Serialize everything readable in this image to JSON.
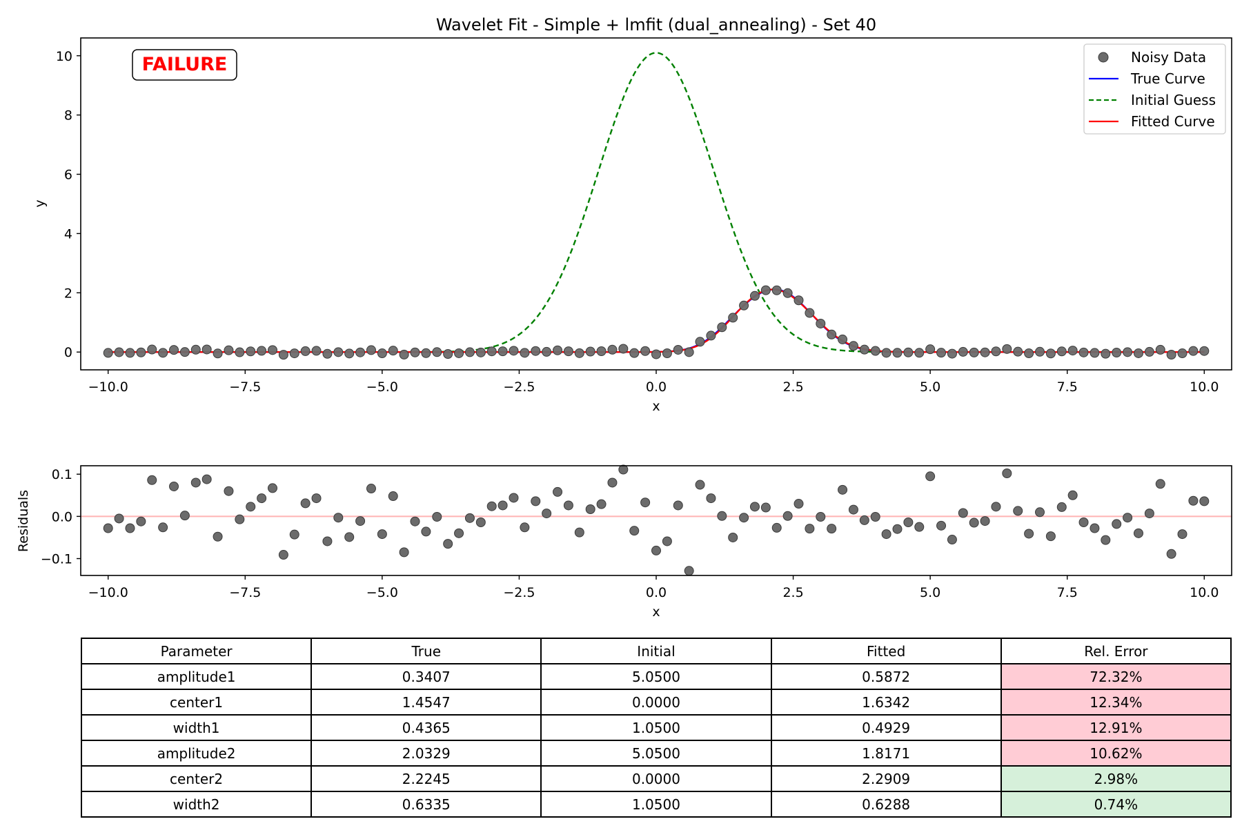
{
  "chart_data": [
    {
      "type": "line",
      "title": "Wavelet Fit - Simple + lmfit (dual_annealing) - Set 40",
      "xlabel": "x",
      "ylabel": "y",
      "xlim": [
        -10.5,
        10.5
      ],
      "ylim": [
        -0.6,
        10.6
      ],
      "xticks": [
        -10,
        -7.5,
        -5,
        -2.5,
        0,
        2.5,
        5,
        7.5,
        10
      ],
      "xtick_labels": [
        "−10.0",
        "−7.5",
        "−5.0",
        "−2.5",
        "0.0",
        "2.5",
        "5.0",
        "7.5",
        "10.0"
      ],
      "yticks": [
        0,
        2,
        4,
        6,
        8,
        10
      ],
      "ytick_labels": [
        "0",
        "2",
        "4",
        "6",
        "8",
        "10"
      ],
      "legend_position": "top-right",
      "status_badge": "FAILURE",
      "series": [
        {
          "name": "Noisy Data",
          "kind": "scatter",
          "color": "#666666",
          "n_points": 101,
          "x_range": [
            -10,
            10
          ],
          "note": "y values equal True Curve plus residuals shown below"
        },
        {
          "name": "True Curve",
          "kind": "line",
          "color": "#0000ff",
          "model": "two gaussians",
          "amplitude1": 0.3407,
          "center1": 1.4547,
          "width1": 0.4365,
          "amplitude2": 2.0329,
          "center2": 2.2245,
          "width2": 0.6335
        },
        {
          "name": "Initial Guess",
          "kind": "line",
          "style": "dashed",
          "color": "#008000",
          "amplitude1": 5.05,
          "center1": 0.0,
          "width1": 1.05,
          "amplitude2": 5.05,
          "center2": 0.0,
          "width2": 1.05
        },
        {
          "name": "Fitted Curve",
          "kind": "line",
          "color": "#ff0000",
          "amplitude1": 0.5872,
          "center1": 1.6342,
          "width1": 0.4929,
          "amplitude2": 1.8171,
          "center2": 2.2909,
          "width2": 0.6288
        }
      ]
    },
    {
      "type": "scatter",
      "title": "",
      "xlabel": "x",
      "ylabel": "Residuals",
      "xlim": [
        -10.5,
        10.5
      ],
      "ylim": [
        -0.14,
        0.12
      ],
      "xticks": [
        -10,
        -7.5,
        -5,
        -2.5,
        0,
        2.5,
        5,
        7.5,
        10
      ],
      "xtick_labels": [
        "−10.0",
        "−7.5",
        "−5.0",
        "−2.5",
        "0.0",
        "2.5",
        "5.0",
        "7.5",
        "10.0"
      ],
      "yticks": [
        -0.1,
        0.0,
        0.1
      ],
      "ytick_labels": [
        "−0.1",
        "0.0",
        "0.1"
      ],
      "zero_line_color": "#ffb3b3",
      "x_start": -10,
      "x_step": 0.2,
      "residuals": [
        -0.028,
        -0.005,
        -0.028,
        -0.012,
        0.086,
        -0.026,
        0.071,
        0.002,
        0.08,
        0.088,
        -0.048,
        0.06,
        -0.007,
        0.023,
        0.043,
        0.067,
        -0.091,
        -0.043,
        0.031,
        0.043,
        -0.059,
        -0.003,
        -0.049,
        -0.011,
        0.066,
        -0.042,
        0.048,
        -0.085,
        -0.012,
        -0.036,
        -0.001,
        -0.065,
        -0.04,
        -0.004,
        -0.014,
        0.024,
        0.026,
        0.044,
        -0.026,
        0.036,
        0.007,
        0.058,
        0.026,
        -0.038,
        0.017,
        0.029,
        0.08,
        0.111,
        -0.034,
        0.033,
        -0.081,
        -0.059,
        0.026,
        -0.129,
        0.075,
        0.043,
        0.001,
        -0.05,
        -0.003,
        0.023,
        0.021,
        -0.027,
        0.001,
        0.03,
        -0.029,
        -0.001,
        -0.029,
        0.063,
        0.016,
        -0.009,
        -0.001,
        -0.042,
        -0.03,
        -0.014,
        -0.025,
        0.095,
        -0.022,
        -0.055,
        0.008,
        -0.015,
        -0.011,
        0.023,
        0.102,
        0.013,
        -0.041,
        0.01,
        -0.047,
        0.022,
        0.05,
        -0.014,
        -0.028,
        -0.056,
        -0.018,
        -0.003,
        -0.04,
        0.007,
        0.077,
        -0.089,
        -0.042,
        0.037,
        0.036
      ]
    },
    {
      "type": "table",
      "columns": [
        "Parameter",
        "True",
        "Initial",
        "Fitted",
        "Rel. Error"
      ],
      "rows": [
        {
          "cells": [
            "amplitude1",
            "0.3407",
            "5.0500",
            "0.5872",
            "72.32%"
          ],
          "status": "bad"
        },
        {
          "cells": [
            "center1",
            "1.4547",
            "0.0000",
            "1.6342",
            "12.34%"
          ],
          "status": "bad"
        },
        {
          "cells": [
            "width1",
            "0.4365",
            "1.0500",
            "0.4929",
            "12.91%"
          ],
          "status": "bad"
        },
        {
          "cells": [
            "amplitude2",
            "2.0329",
            "5.0500",
            "1.8171",
            "10.62%"
          ],
          "status": "bad"
        },
        {
          "cells": [
            "center2",
            "2.2245",
            "0.0000",
            "2.2909",
            "2.98%"
          ],
          "status": "good"
        },
        {
          "cells": [
            "width2",
            "0.6335",
            "1.0500",
            "0.6288",
            "0.74%"
          ],
          "status": "good"
        }
      ],
      "colors": {
        "bad": "#ffccd5",
        "good": "#d6f0da"
      }
    }
  ]
}
